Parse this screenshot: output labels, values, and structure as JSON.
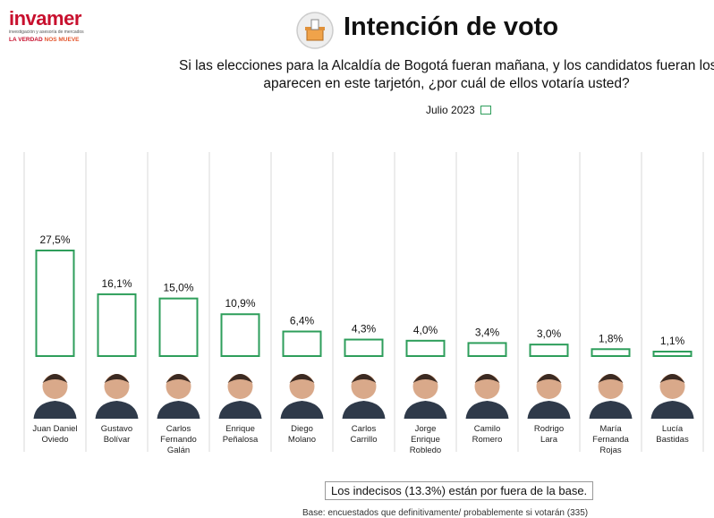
{
  "logo": {
    "brand": "invamer",
    "tagline": "investigación y asesoría de mercados",
    "motto_a": "LA VERDAD",
    "motto_b": "NOS MUEVE"
  },
  "header": {
    "title": "Intención de voto",
    "question_line1": "Si las elecciones para la Alcaldía de Bogotá fueran mañana, y los candidatos fueran los que",
    "question_line2": "aparecen en este tarjetón, ¿por cuál de ellos votaría usted?",
    "ballot_icon": "ballot-box-icon"
  },
  "colors": {
    "bar_border": "#2e9e5b",
    "grid": "#d9d9d9",
    "brand": "#c8102e"
  },
  "chart_data": {
    "type": "bar",
    "title": "Intención de voto",
    "categories": [
      [
        "Juan Daniel",
        "Oviedo"
      ],
      [
        "Gustavo",
        "Bolívar"
      ],
      [
        "Carlos",
        "Fernando",
        "Galán"
      ],
      [
        "Enrique",
        "Peñalosa"
      ],
      [
        "Diego",
        "Molano"
      ],
      [
        "Carlos",
        "Carrillo"
      ],
      [
        "Jorge",
        "Enrique",
        "Robledo"
      ],
      [
        "Camilo",
        "Romero"
      ],
      [
        "Rodrigo",
        "Lara"
      ],
      [
        "María",
        "Fernanda",
        "Rojas"
      ],
      [
        "Lucía",
        "Bastidas"
      ]
    ],
    "series": [
      {
        "name": "Julio 2023",
        "values": [
          27.5,
          16.1,
          15.0,
          10.9,
          6.4,
          4.3,
          4.0,
          3.4,
          3.0,
          1.8,
          1.1
        ]
      }
    ],
    "value_labels": [
      "27,5%",
      "16,1%",
      "15,0%",
      "10,9%",
      "6,4%",
      "4,3%",
      "4,0%",
      "3,4%",
      "3,0%",
      "1,8%",
      "1,1%"
    ],
    "legend": "top",
    "grid": true,
    "ylim": [
      0,
      30
    ]
  },
  "footer": {
    "note": "Los indecisos (13.3%) están por fuera de la base.",
    "base": "Base: encuestados que definitivamente/ probablemente si votarán (335)"
  }
}
